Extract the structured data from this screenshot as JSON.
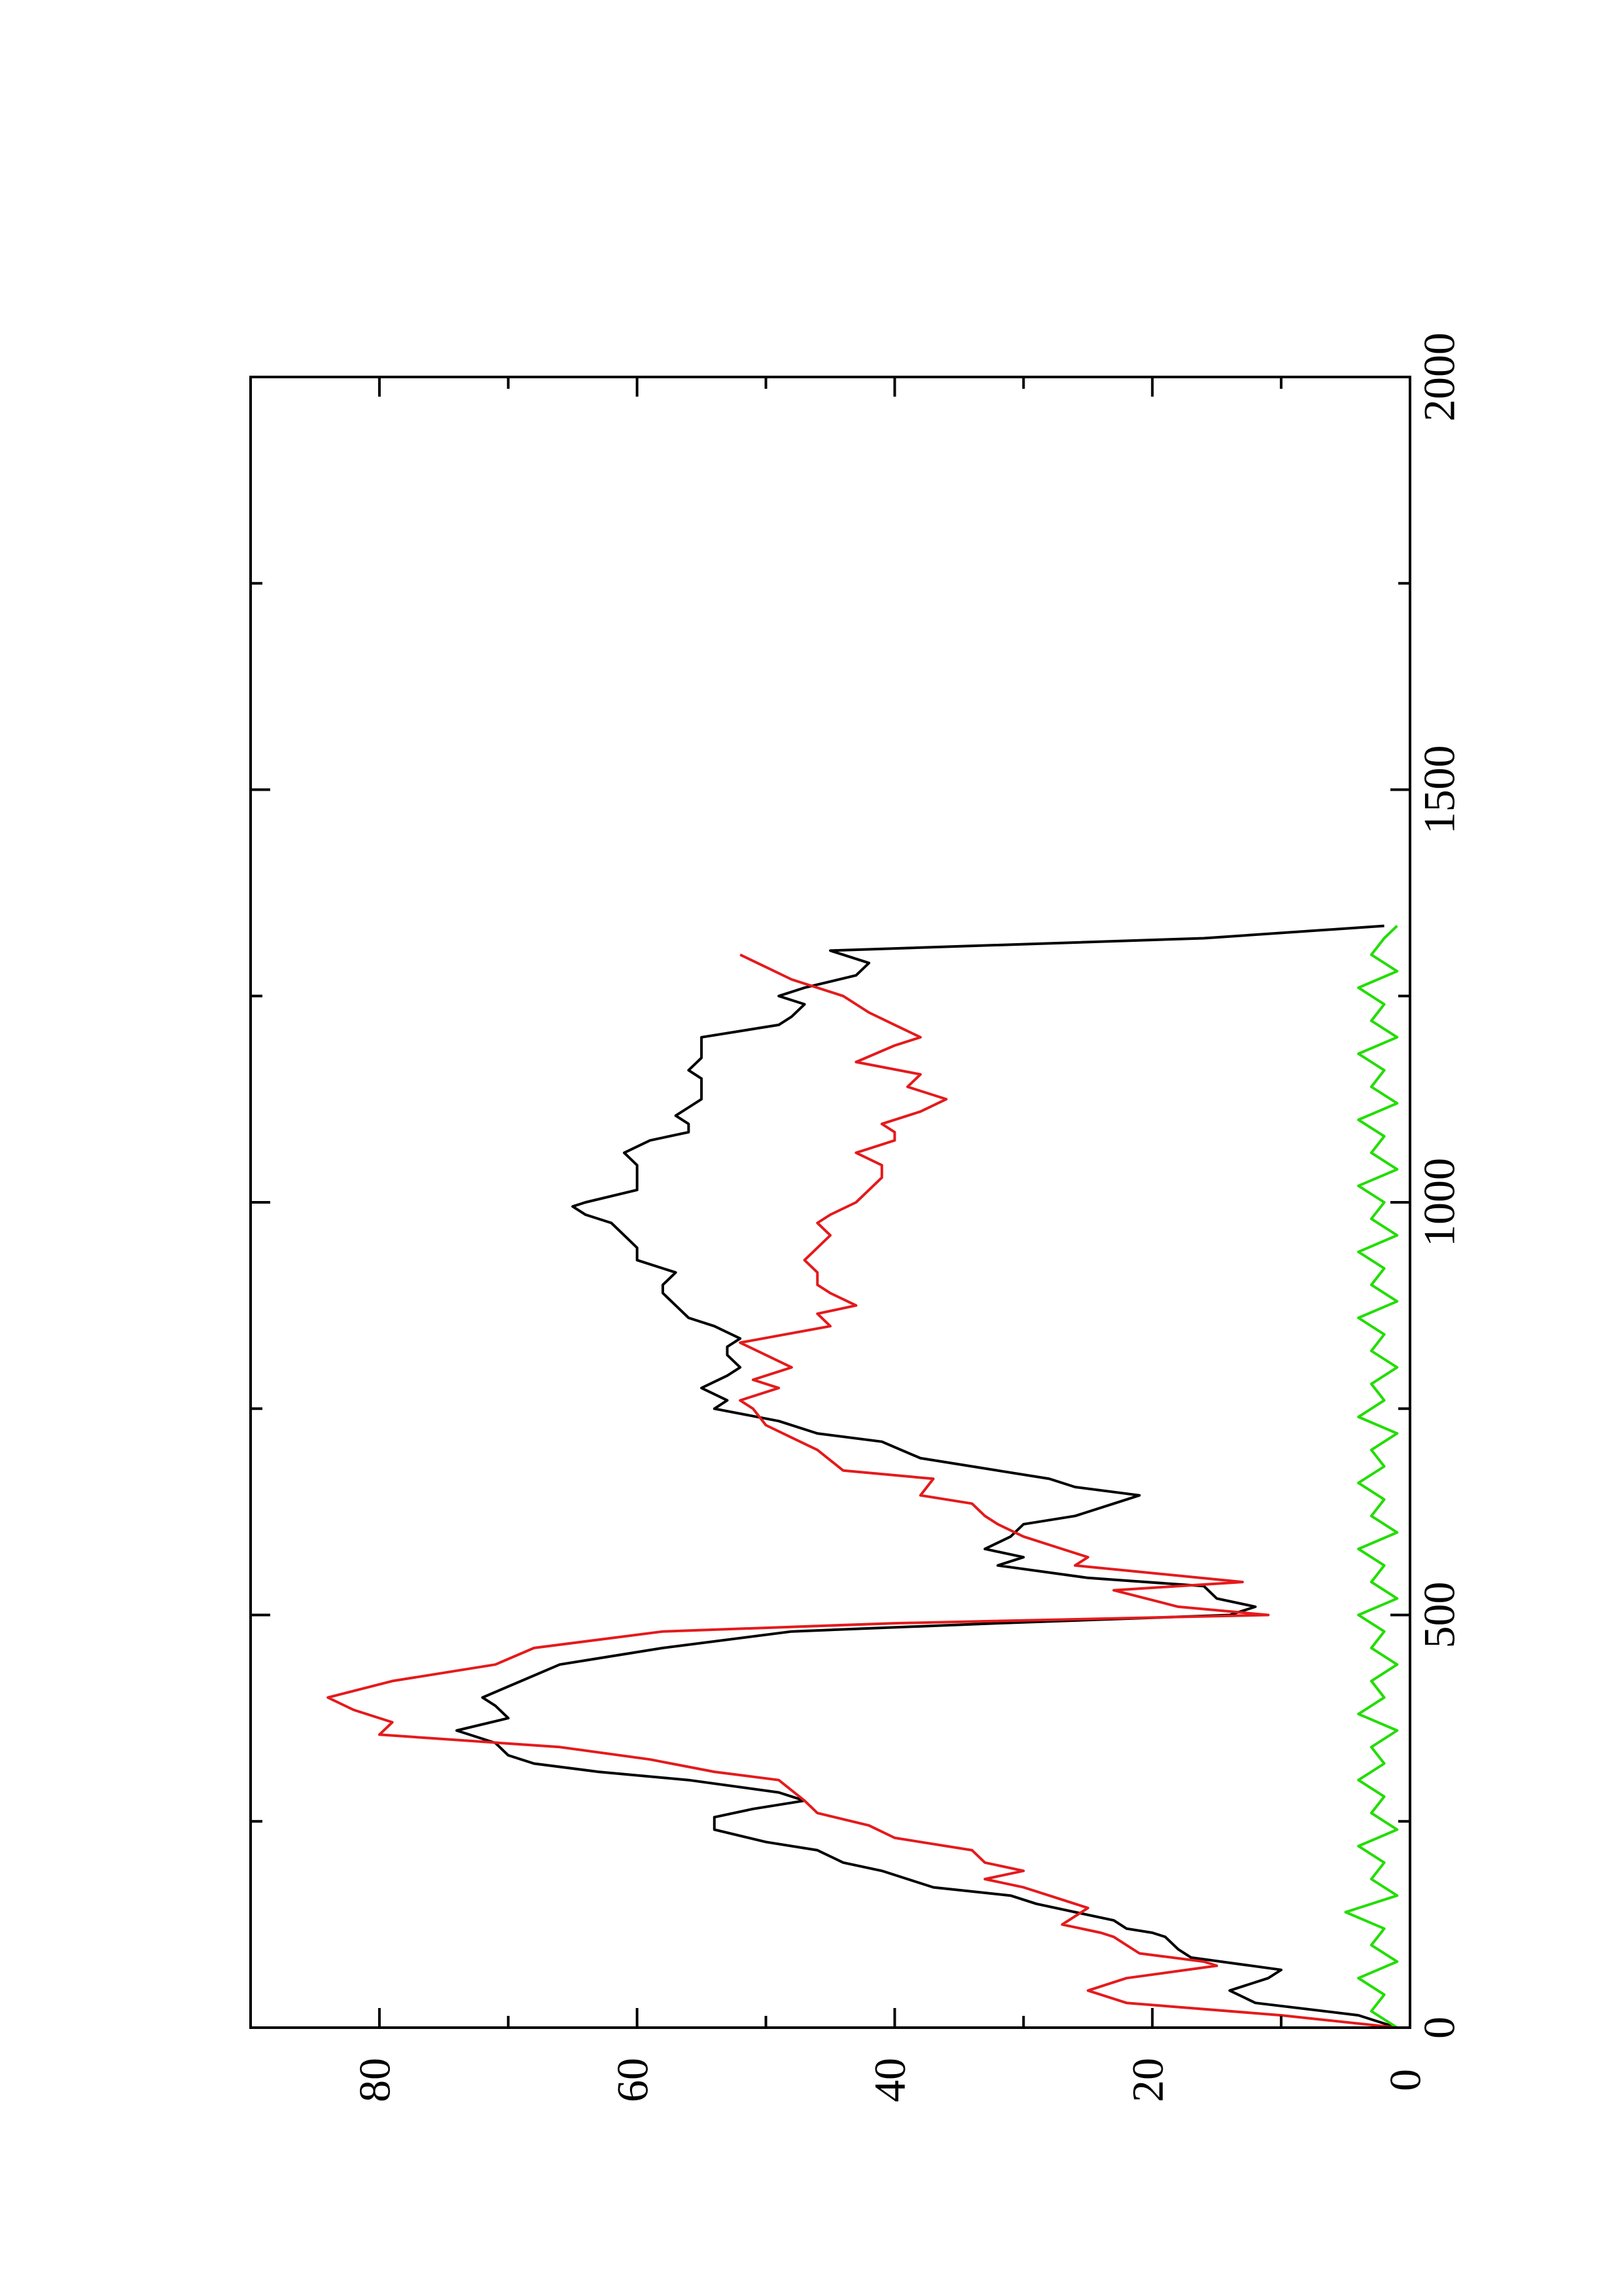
{
  "chart_data": {
    "type": "line",
    "title": "",
    "xlabel": "",
    "ylabel": "",
    "orientation": "rotated-90-counterclockwise",
    "xlim": [
      0,
      2000
    ],
    "ylim": [
      0,
      90
    ],
    "x_ticks_major": [
      0,
      500,
      1000,
      1500,
      2000
    ],
    "x_tick_labels": [
      "0",
      "500",
      "1000",
      "1500",
      "2000"
    ],
    "x_ticks_minor": [
      250,
      750,
      1250,
      1750
    ],
    "y_ticks_major": [
      0,
      20,
      40,
      60,
      80
    ],
    "y_tick_labels": [
      "0",
      "20",
      "40",
      "60",
      "80"
    ],
    "y_ticks_minor": [
      10,
      30,
      50,
      70
    ],
    "grid": false,
    "legend": "none",
    "colors": {
      "series_1": "#000000",
      "series_2": "#e41a1c",
      "series_3": "#22dd00",
      "axes": "#000000"
    },
    "series": [
      {
        "color": "#000000",
        "x": [
          0,
          15,
          30,
          45,
          60,
          70,
          85,
          95,
          110,
          115,
          120,
          130,
          140,
          150,
          160,
          170,
          180,
          190,
          200,
          215,
          225,
          240,
          255,
          265,
          275,
          285,
          300,
          310,
          320,
          330,
          345,
          360,
          375,
          390,
          400,
          420,
          440,
          460,
          480,
          490,
          500,
          510,
          520,
          535,
          545,
          560,
          570,
          580,
          595,
          610,
          620,
          635,
          645,
          655,
          665,
          675,
          690,
          710,
          720,
          735,
          750,
          760,
          775,
          790,
          800,
          815,
          825,
          835,
          850,
          860,
          875,
          890,
          900,
          915,
          930,
          945,
          960,
          975,
          985,
          995,
          1000,
          1015,
          1030,
          1045,
          1060,
          1075,
          1085,
          1095,
          1105,
          1115,
          1125,
          1140,
          1150,
          1160,
          1175,
          1190,
          1200,
          1215,
          1225,
          1240,
          1250,
          1260,
          1275,
          1290,
          1305,
          1320,
          1335
        ],
        "y": [
          1,
          4,
          12,
          14,
          11,
          10,
          17,
          18,
          19,
          20,
          22,
          23,
          26,
          29,
          31,
          37,
          39,
          41,
          44,
          46,
          50,
          54,
          54,
          51,
          47,
          49,
          56,
          63,
          68,
          70,
          71,
          74,
          70,
          71,
          72,
          69,
          66,
          58,
          48,
          32,
          14,
          12,
          15,
          16,
          25,
          32,
          30,
          33,
          31,
          30,
          26,
          23,
          21,
          26,
          28,
          32,
          38,
          41,
          46,
          49,
          54,
          53,
          55,
          53,
          52,
          53,
          53,
          52,
          54,
          56,
          57,
          58,
          58,
          57,
          60,
          60,
          61,
          62,
          64,
          65,
          64,
          60,
          60,
          60,
          61,
          59,
          56,
          56,
          57,
          56,
          55,
          55,
          55,
          56,
          55,
          55,
          55,
          49,
          48,
          47,
          49,
          47,
          43,
          42,
          45,
          16,
          2
        ]
      },
      {
        "color": "#e41a1c",
        "x": [
          0,
          15,
          30,
          45,
          60,
          75,
          80,
          90,
          100,
          110,
          115,
          125,
          135,
          145,
          150,
          160,
          170,
          180,
          190,
          200,
          215,
          230,
          245,
          260,
          275,
          300,
          310,
          325,
          340,
          355,
          370,
          385,
          400,
          420,
          440,
          460,
          480,
          490,
          500,
          510,
          530,
          540,
          560,
          570,
          580,
          595,
          610,
          620,
          635,
          645,
          665,
          675,
          700,
          715,
          730,
          750,
          760,
          775,
          785,
          800,
          815,
          830,
          850,
          865,
          875,
          890,
          900,
          915,
          930,
          945,
          960,
          975,
          985,
          1000,
          1015,
          1030,
          1045,
          1060,
          1075,
          1085,
          1095,
          1110,
          1125,
          1140,
          1155,
          1170,
          1190,
          1200,
          1215,
          1230,
          1250,
          1260,
          1270,
          1285,
          1300
        ],
        "y": [
          1,
          10,
          22,
          25,
          22,
          15,
          16,
          21,
          22,
          23,
          24,
          27,
          26,
          25,
          26,
          28,
          30,
          33,
          30,
          33,
          34,
          40,
          42,
          46,
          47,
          49,
          54,
          59,
          66,
          80,
          79,
          82,
          84,
          79,
          71,
          68,
          58,
          40,
          11,
          18,
          23,
          13,
          26,
          25,
          27,
          30,
          32,
          33,
          34,
          38,
          37,
          44,
          46,
          48,
          50,
          51,
          52,
          49,
          51,
          48,
          50,
          52,
          45,
          46,
          43,
          45,
          46,
          46,
          47,
          46,
          45,
          46,
          45,
          43,
          42,
          41,
          41,
          43,
          40,
          40,
          41,
          38,
          36,
          39,
          38,
          43,
          40,
          38,
          40,
          42,
          44,
          46,
          48,
          50,
          52
        ]
      },
      {
        "color": "#22dd00",
        "x": [
          0,
          20,
          40,
          60,
          80,
          100,
          120,
          140,
          160,
          180,
          200,
          220,
          240,
          260,
          280,
          300,
          320,
          340,
          360,
          380,
          400,
          420,
          440,
          460,
          480,
          500,
          520,
          540,
          560,
          580,
          600,
          620,
          640,
          660,
          680,
          700,
          720,
          740,
          760,
          780,
          800,
          820,
          840,
          860,
          880,
          900,
          920,
          940,
          960,
          980,
          1000,
          1020,
          1040,
          1060,
          1080,
          1100,
          1120,
          1140,
          1160,
          1180,
          1200,
          1220,
          1240,
          1260,
          1280,
          1300,
          1320,
          1335
        ],
        "y": [
          1,
          3,
          2,
          4,
          1,
          3,
          2,
          5,
          1,
          3,
          2,
          4,
          1,
          3,
          2,
          4,
          2,
          3,
          1,
          4,
          2,
          3,
          1,
          3,
          2,
          4,
          1,
          3,
          2,
          4,
          1,
          3,
          2,
          4,
          2,
          3,
          1,
          4,
          2,
          3,
          1,
          3,
          2,
          4,
          1,
          3,
          2,
          4,
          1,
          3,
          2,
          4,
          1,
          3,
          2,
          4,
          1,
          3,
          2,
          4,
          1,
          3,
          2,
          4,
          1,
          3,
          2,
          1
        ]
      }
    ]
  }
}
